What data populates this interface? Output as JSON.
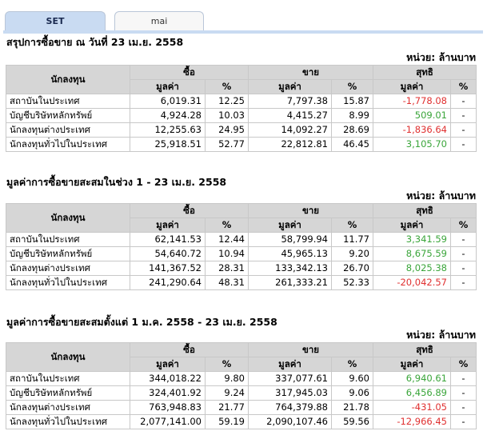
{
  "tabs": [
    {
      "label": "SET",
      "active": true
    },
    {
      "label": "mai",
      "active": false
    }
  ],
  "colors": {
    "positive": "#3aa53a",
    "negative": "#e03030",
    "header_bg": "#d6d6d6",
    "tab_active": "#c9dbf2"
  },
  "headers": {
    "investor": "นักลงทุน",
    "buy": "ซื้อ",
    "sell": "ขาย",
    "net": "สุทธิ",
    "value": "มูลค่า",
    "pct": "%"
  },
  "sections": [
    {
      "title": "สรุปการซื้อขาย ณ วันที่ 23 เม.ย. 2558",
      "unit": "หน่วย: ล้านบาท",
      "rows": [
        {
          "name": "สถาบันในประเทศ",
          "buy": "6,019.31",
          "buy_pct": "12.25",
          "sell": "7,797.38",
          "sell_pct": "15.87",
          "net": "-1,778.08",
          "net_sign": "neg",
          "net_pct": "-"
        },
        {
          "name": "บัญชีบริษัทหลักทรัพย์",
          "buy": "4,924.28",
          "buy_pct": "10.03",
          "sell": "4,415.27",
          "sell_pct": "8.99",
          "net": "509.01",
          "net_sign": "pos",
          "net_pct": "-"
        },
        {
          "name": "นักลงทุนต่างประเทศ",
          "buy": "12,255.63",
          "buy_pct": "24.95",
          "sell": "14,092.27",
          "sell_pct": "28.69",
          "net": "-1,836.64",
          "net_sign": "neg",
          "net_pct": "-"
        },
        {
          "name": "นักลงทุนทั่วไปในประเทศ",
          "buy": "25,918.51",
          "buy_pct": "52.77",
          "sell": "22,812.81",
          "sell_pct": "46.45",
          "net": "3,105.70",
          "net_sign": "pos",
          "net_pct": "-"
        }
      ]
    },
    {
      "title": "มูลค่าการซื้อขายสะสมในช่วง 1 - 23 เม.ย. 2558",
      "unit": "หน่วย: ล้านบาท",
      "rows": [
        {
          "name": "สถาบันในประเทศ",
          "buy": "62,141.53",
          "buy_pct": "12.44",
          "sell": "58,799.94",
          "sell_pct": "11.77",
          "net": "3,341.59",
          "net_sign": "pos",
          "net_pct": "-"
        },
        {
          "name": "บัญชีบริษัทหลักทรัพย์",
          "buy": "54,640.72",
          "buy_pct": "10.94",
          "sell": "45,965.13",
          "sell_pct": "9.20",
          "net": "8,675.59",
          "net_sign": "pos",
          "net_pct": "-"
        },
        {
          "name": "นักลงทุนต่างประเทศ",
          "buy": "141,367.52",
          "buy_pct": "28.31",
          "sell": "133,342.13",
          "sell_pct": "26.70",
          "net": "8,025.38",
          "net_sign": "pos",
          "net_pct": "-"
        },
        {
          "name": "นักลงทุนทั่วไปในประเทศ",
          "buy": "241,290.64",
          "buy_pct": "48.31",
          "sell": "261,333.21",
          "sell_pct": "52.33",
          "net": "-20,042.57",
          "net_sign": "neg",
          "net_pct": "-"
        }
      ]
    },
    {
      "title": "มูลค่าการซื้อขายสะสมตั้งแต่ 1 ม.ค. 2558 - 23 เม.ย. 2558",
      "unit": "หน่วย: ล้านบาท",
      "rows": [
        {
          "name": "สถาบันในประเทศ",
          "buy": "344,018.22",
          "buy_pct": "9.80",
          "sell": "337,077.61",
          "sell_pct": "9.60",
          "net": "6,940.61",
          "net_sign": "pos",
          "net_pct": "-"
        },
        {
          "name": "บัญชีบริษัทหลักทรัพย์",
          "buy": "324,401.92",
          "buy_pct": "9.24",
          "sell": "317,945.03",
          "sell_pct": "9.06",
          "net": "6,456.89",
          "net_sign": "pos",
          "net_pct": "-"
        },
        {
          "name": "นักลงทุนต่างประเทศ",
          "buy": "763,948.83",
          "buy_pct": "21.77",
          "sell": "764,379.88",
          "sell_pct": "21.78",
          "net": "-431.05",
          "net_sign": "neg",
          "net_pct": "-"
        },
        {
          "name": "นักลงทุนทั่วไปในประเทศ",
          "buy": "2,077,141.00",
          "buy_pct": "59.19",
          "sell": "2,090,107.46",
          "sell_pct": "59.56",
          "net": "-12,966.45",
          "net_sign": "neg",
          "net_pct": "-"
        }
      ]
    }
  ]
}
